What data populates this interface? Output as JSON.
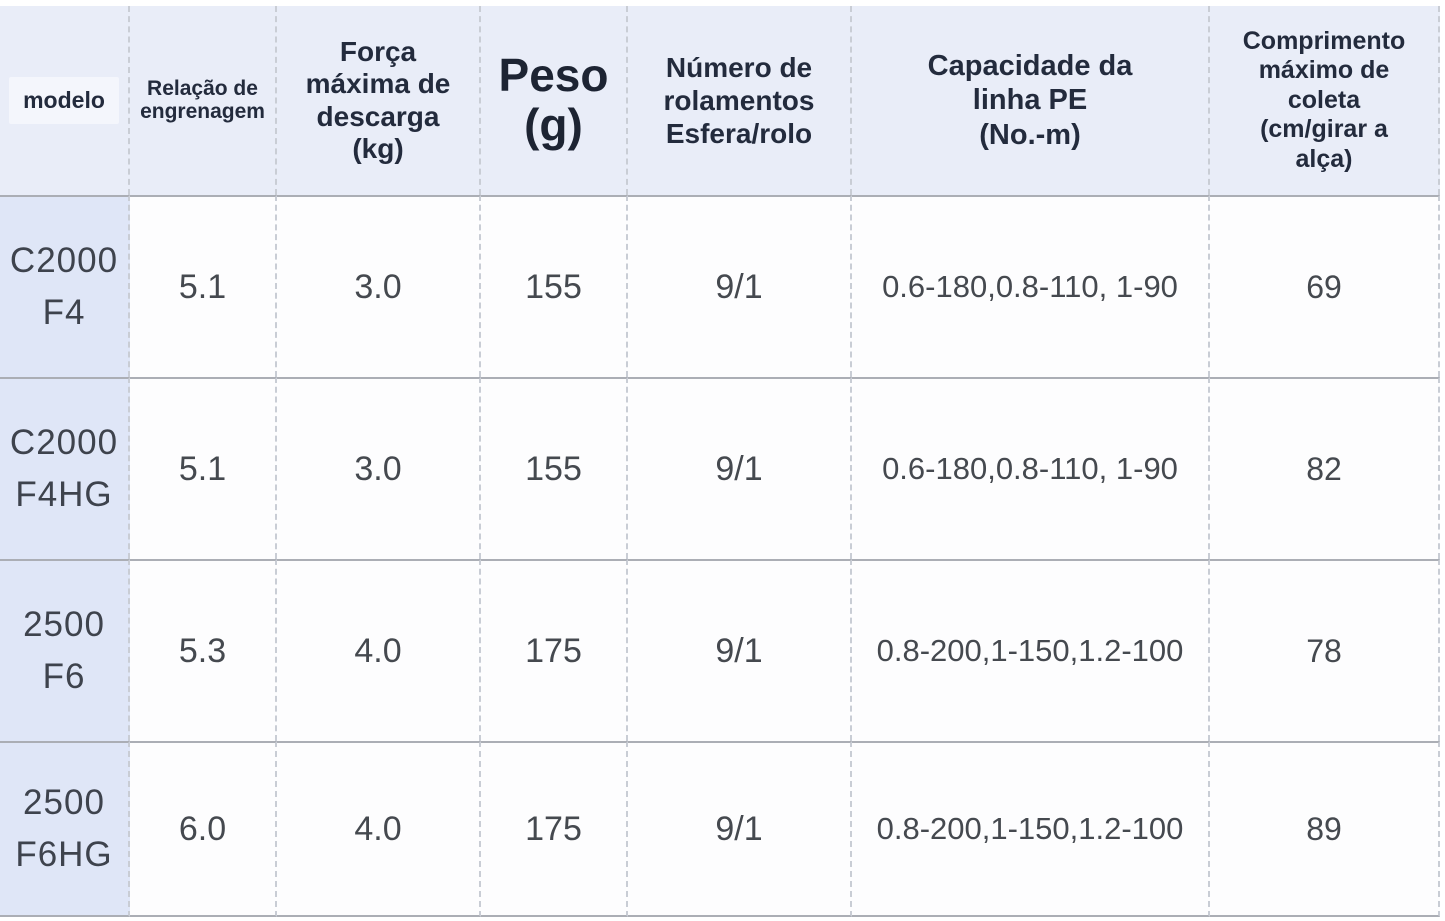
{
  "chart_data": {
    "type": "table",
    "title": "",
    "columns": [
      "modelo",
      "Relação de\nengrenagem",
      "Força\nmáxima de\ndescarga\n(kg)",
      "Peso\n(g)",
      "Número de\nrolamentos\nEsfera/rolo",
      "Capacidade da\nlinha PE\n(No.-m)",
      "Comprimento\nmáximo de\ncoleta\n(cm/girar a\nalça)"
    ],
    "rows": [
      [
        "C2000\nF4",
        "5.1",
        "3.0",
        "155",
        "9/1",
        "0.6-180,0.8-110, 1-90",
        "69"
      ],
      [
        "C2000\nF4HG",
        "5.1",
        "3.0",
        "155",
        "9/1",
        "0.6-180,0.8-110, 1-90",
        "82"
      ],
      [
        "2500\nF6",
        "5.3",
        "4.0",
        "175",
        "9/1",
        "0.8-200,1-150,1.2-100",
        "78"
      ],
      [
        "2500\nF6HG",
        "6.0",
        "4.0",
        "175",
        "9/1",
        "0.8-200,1-150,1.2-100",
        "89"
      ]
    ]
  },
  "colors": {
    "header_bg": "#e9edf8",
    "model_column_bg": "#dfe6f7",
    "cell_bg": "#fdfdfe",
    "header_text": "#232b3d",
    "cell_text": "#45494f",
    "solid_border": "#abaeb5",
    "dashed_border": "#c9cdd5"
  }
}
